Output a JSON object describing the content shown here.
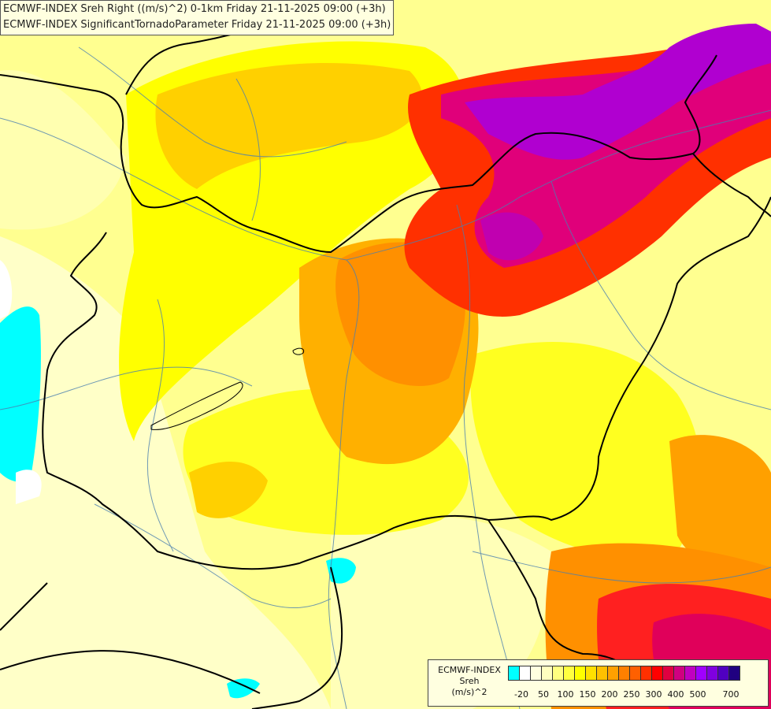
{
  "header": {
    "line1": "ECMWF-INDEX Sreh Right ((m/s)^2) 0-1km Friday 21-11-2025 09:00 (+3h)",
    "line2": "ECMWF-INDEX SignificantTornadoParameter Friday 21-11-2025 09:00 (+3h)"
  },
  "legend": {
    "line1": "ECMWF-INDEX",
    "line2": "Sreh",
    "line3": "(m/s)^2",
    "colors": [
      "#00ffff",
      "#ffffff",
      "#ffffe0",
      "#ffffc0",
      "#ffff80",
      "#ffff40",
      "#ffff00",
      "#ffe000",
      "#ffc000",
      "#ffa000",
      "#ff8000",
      "#ff6000",
      "#ff3000",
      "#ff0000",
      "#e00040",
      "#d00080",
      "#c000c0",
      "#a000ff",
      "#8000e0",
      "#5000c0",
      "#200080"
    ],
    "ticks": [
      "-20",
      "50",
      "100",
      "150",
      "200",
      "250",
      "300",
      "400",
      "500",
      "700"
    ]
  },
  "colors": {
    "background": "#ffff80",
    "border": "#000000",
    "river": "#4a7fb0"
  }
}
